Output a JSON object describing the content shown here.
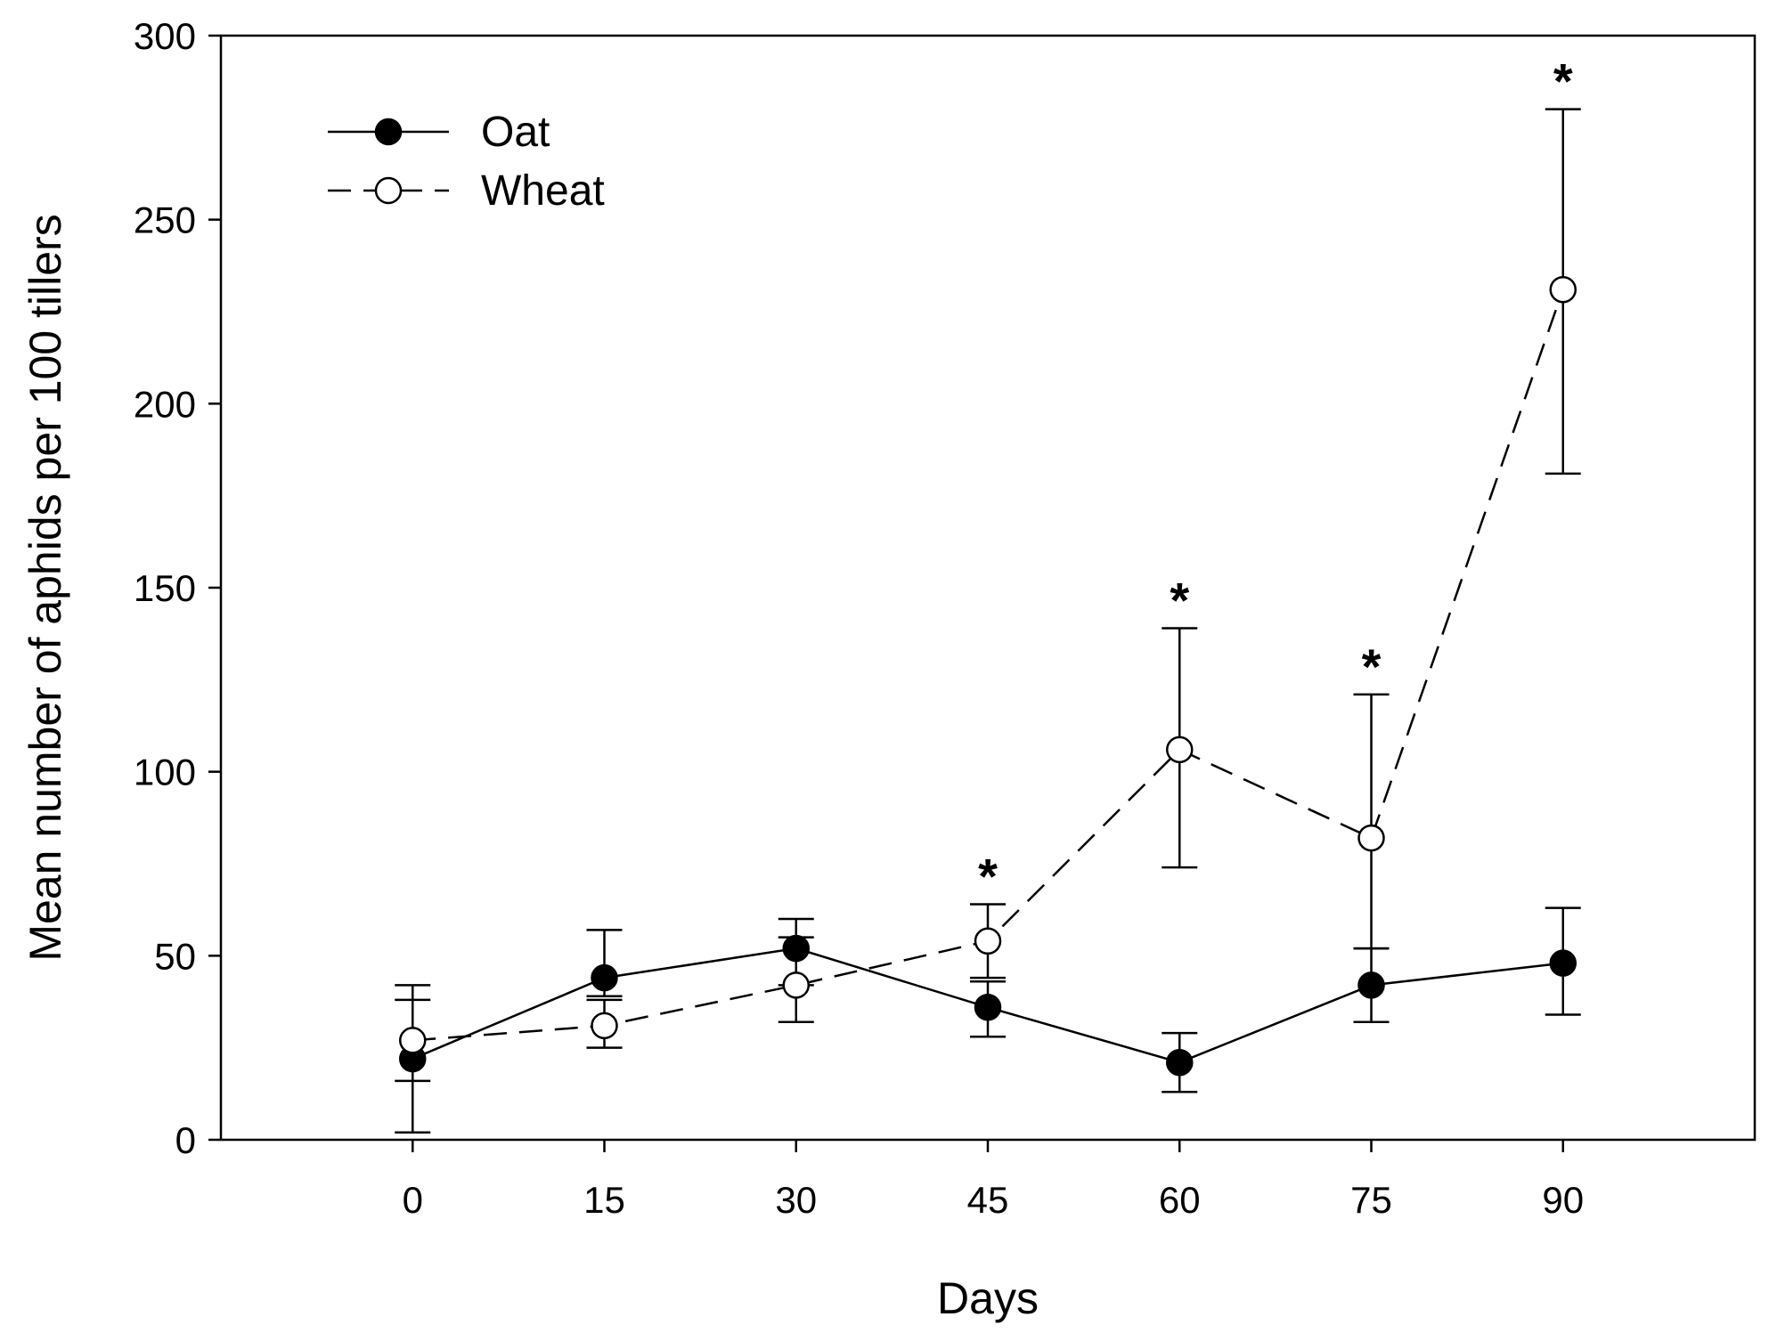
{
  "chart_data": {
    "type": "line",
    "title": "",
    "xlabel": "Days",
    "ylabel": "Mean number of aphids per 100 tillers",
    "x": [
      0,
      15,
      30,
      45,
      60,
      75,
      90
    ],
    "x_ticks": [
      "0",
      "15",
      "30",
      "45",
      "60",
      "75",
      "90"
    ],
    "xlim": [
      -15,
      105
    ],
    "ylim": [
      0,
      300
    ],
    "y_ticks": [
      "0",
      "50",
      "100",
      "150",
      "200",
      "250",
      "300"
    ],
    "grid": false,
    "legend_position": "top-left",
    "series": [
      {
        "name": "Oat",
        "marker": "filled-circle",
        "line_style": "solid",
        "values": [
          22,
          44,
          52,
          36,
          21,
          42,
          48
        ],
        "err_upper": [
          38,
          57,
          60,
          43,
          29,
          52,
          63
        ],
        "err_lower": [
          2,
          39,
          42,
          28,
          13,
          32,
          34
        ]
      },
      {
        "name": "Wheat",
        "marker": "open-circle",
        "line_style": "dashed",
        "values": [
          27,
          31,
          42,
          54,
          106,
          82,
          231
        ],
        "err_upper": [
          42,
          38,
          55,
          64,
          139,
          121,
          280
        ],
        "err_lower": [
          16,
          25,
          32,
          44,
          74,
          52,
          181
        ]
      }
    ],
    "annotations": [
      {
        "x": 45,
        "y": 64,
        "text": "*"
      },
      {
        "x": 60,
        "y": 139,
        "text": "*"
      },
      {
        "x": 75,
        "y": 121,
        "text": "*"
      },
      {
        "x": 90,
        "y": 280,
        "text": "*"
      }
    ]
  }
}
